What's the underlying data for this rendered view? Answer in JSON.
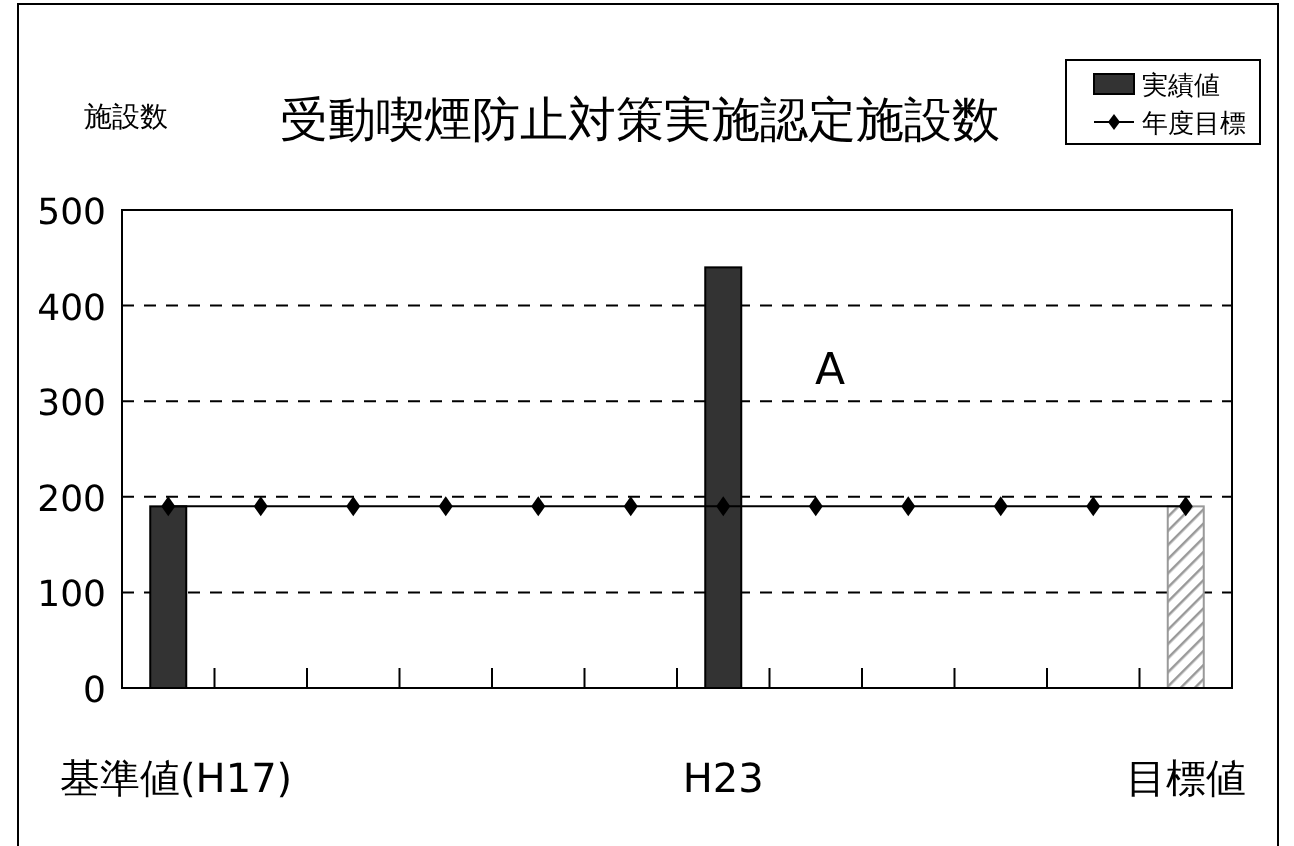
{
  "chart_data": {
    "type": "bar",
    "title": "受動喫煙防止対策実施認定施設数",
    "ylabel": "施設数",
    "categories": [
      "基準値(H17)",
      null,
      null,
      null,
      null,
      null,
      "H23",
      null,
      null,
      null,
      null,
      "目標値"
    ],
    "series": [
      {
        "name": "実績値",
        "color": "#333333",
        "colors": [
          "#333333",
          null,
          null,
          null,
          null,
          null,
          "#333333",
          null,
          null,
          null,
          null,
          "#999999"
        ],
        "values": [
          190,
          null,
          null,
          null,
          null,
          null,
          440,
          null,
          null,
          null,
          null,
          190
        ]
      },
      {
        "name": "年度目標",
        "type": "line",
        "color": "#000000",
        "marker": "diamond",
        "values": [
          190,
          190,
          190,
          190,
          190,
          190,
          190,
          190,
          190,
          190,
          190,
          190
        ]
      }
    ],
    "ylim": [
      0,
      500
    ],
    "yticks": [
      0,
      100,
      200,
      300,
      400,
      500
    ],
    "grid": "y",
    "legend": "top right",
    "annotations": [
      "A"
    ]
  }
}
